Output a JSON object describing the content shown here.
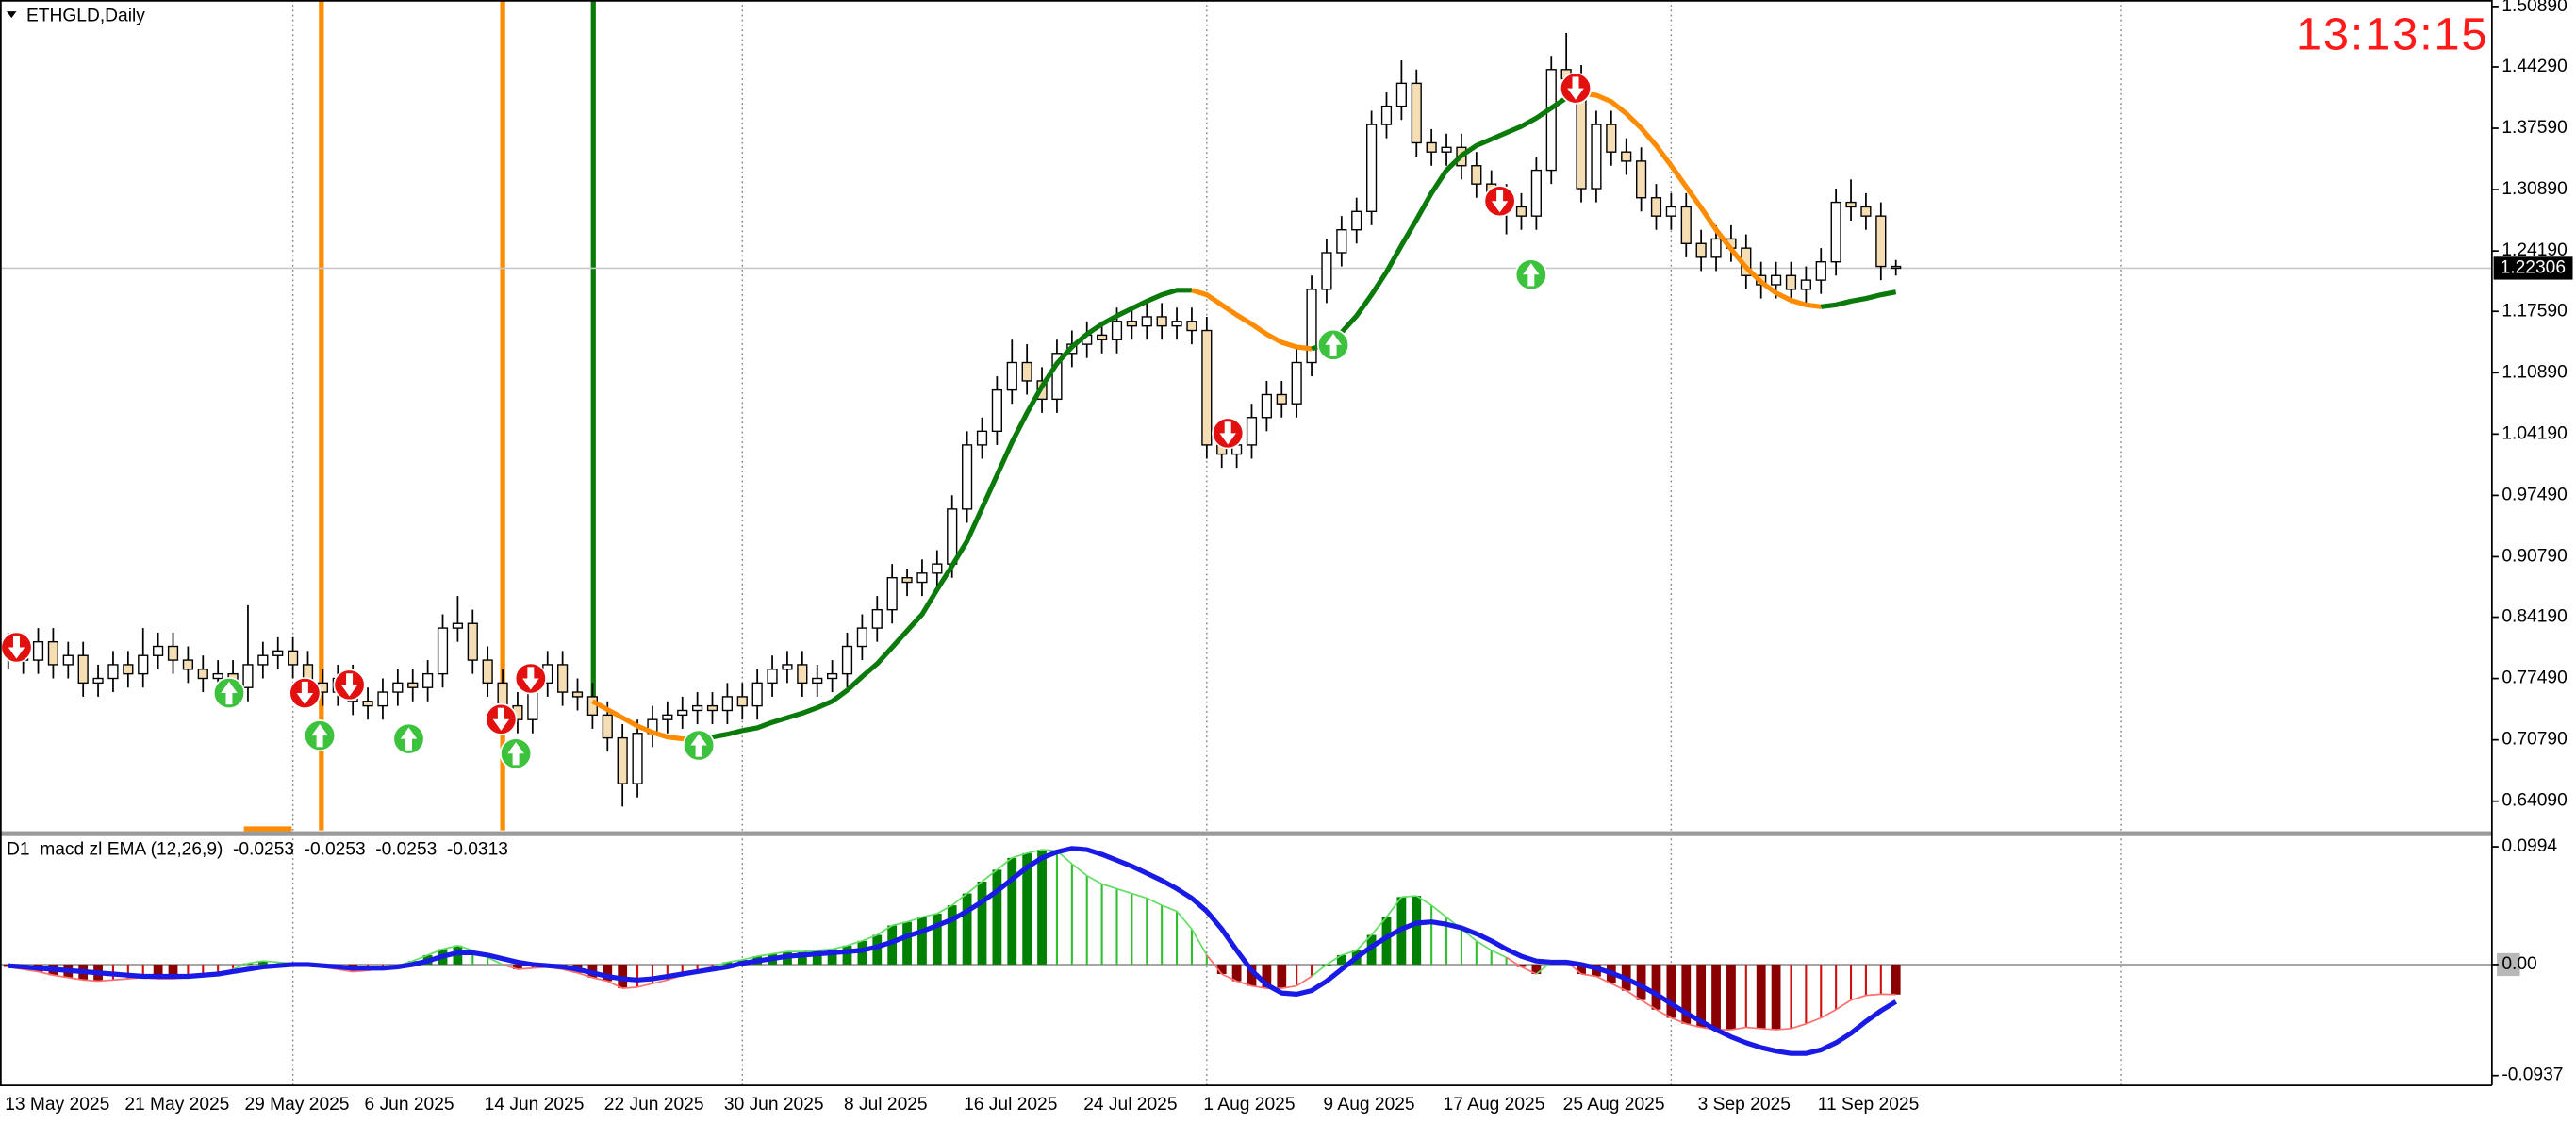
{
  "chart_data": [
    {
      "type": "candlestick",
      "title": "ETHGLD,Daily",
      "clock": "13:13:15",
      "categories": [
        "13 May 2025",
        null,
        null,
        null,
        null,
        null,
        null,
        null,
        "21 May 2025",
        null,
        null,
        null,
        null,
        null,
        null,
        null,
        "29 May 2025",
        null,
        null,
        null,
        null,
        null,
        null,
        null,
        "6 Jun 2025",
        null,
        null,
        null,
        null,
        null,
        null,
        null,
        "14 Jun 2025",
        null,
        null,
        null,
        null,
        null,
        null,
        null,
        "22 Jun 2025",
        null,
        null,
        null,
        null,
        null,
        null,
        null,
        "30 Jun 2025",
        null,
        null,
        null,
        null,
        null,
        null,
        null,
        "8 Jul 2025",
        null,
        null,
        null,
        null,
        null,
        null,
        null,
        "16 Jul 2025",
        null,
        null,
        null,
        null,
        null,
        null,
        null,
        "24 Jul 2025",
        null,
        null,
        null,
        null,
        null,
        null,
        null,
        "1 Aug 2025",
        null,
        null,
        null,
        null,
        null,
        null,
        null,
        "9 Aug 2025",
        null,
        null,
        null,
        null,
        null,
        null,
        null,
        "17 Aug 2025",
        null,
        null,
        null,
        null,
        null,
        null,
        null,
        "25 Aug 2025",
        null,
        null,
        null,
        null,
        null,
        null,
        null,
        null,
        "3 Sep 2025",
        null,
        null,
        null,
        null,
        null,
        null,
        null,
        "11 Sep 2025",
        null,
        null,
        null,
        null,
        null
      ],
      "open": [
        0.8,
        0.81,
        0.795,
        0.815,
        0.79,
        0.8,
        0.77,
        0.775,
        0.79,
        0.78,
        0.8,
        0.81,
        0.795,
        0.785,
        0.775,
        0.78,
        0.765,
        0.79,
        0.8,
        0.805,
        0.79,
        0.77,
        0.76,
        0.775,
        0.75,
        0.745,
        0.76,
        0.77,
        0.765,
        0.78,
        0.83,
        0.835,
        0.795,
        0.77,
        0.745,
        0.73,
        0.77,
        0.79,
        0.76,
        0.755,
        0.735,
        0.71,
        0.66,
        0.715,
        0.73,
        0.735,
        0.74,
        0.745,
        0.74,
        0.755,
        0.745,
        0.77,
        0.785,
        0.79,
        0.77,
        0.775,
        0.78,
        0.81,
        0.83,
        0.85,
        0.885,
        0.88,
        0.89,
        0.9,
        0.96,
        1.03,
        1.045,
        1.09,
        1.12,
        1.1,
        1.08,
        1.13,
        1.14,
        1.15,
        1.145,
        1.165,
        1.16,
        1.17,
        1.16,
        1.165,
        1.155,
        1.03,
        1.02,
        1.03,
        1.06,
        1.085,
        1.075,
        1.12,
        1.2,
        1.24,
        1.265,
        1.285,
        1.38,
        1.4,
        1.425,
        1.36,
        1.35,
        1.355,
        1.335,
        1.315,
        1.3,
        1.29,
        1.28,
        1.33,
        1.44,
        1.43,
        1.31,
        1.38,
        1.35,
        1.34,
        1.3,
        1.28,
        1.29,
        1.25,
        1.235,
        1.255,
        1.245,
        1.215,
        1.205,
        1.215,
        1.2,
        1.21,
        1.23,
        1.295,
        1.29,
        1.28,
        1.225
      ],
      "high": [
        0.825,
        0.825,
        0.83,
        0.83,
        0.815,
        0.815,
        0.79,
        0.805,
        0.805,
        0.83,
        0.825,
        0.825,
        0.81,
        0.8,
        0.795,
        0.795,
        0.855,
        0.815,
        0.82,
        0.82,
        0.805,
        0.785,
        0.79,
        0.79,
        0.765,
        0.775,
        0.785,
        0.785,
        0.795,
        0.845,
        0.865,
        0.85,
        0.81,
        0.785,
        0.76,
        0.785,
        0.805,
        0.805,
        0.775,
        0.77,
        0.75,
        0.725,
        0.73,
        0.745,
        0.75,
        0.755,
        0.76,
        0.76,
        0.77,
        0.77,
        0.785,
        0.8,
        0.805,
        0.805,
        0.79,
        0.795,
        0.825,
        0.845,
        0.865,
        0.9,
        0.895,
        0.905,
        0.915,
        0.975,
        1.045,
        1.06,
        1.105,
        1.145,
        1.14,
        1.115,
        1.145,
        1.155,
        1.165,
        1.165,
        1.18,
        1.18,
        1.185,
        1.185,
        1.18,
        1.18,
        1.17,
        1.045,
        1.045,
        1.075,
        1.1,
        1.1,
        1.135,
        1.215,
        1.255,
        1.28,
        1.3,
        1.395,
        1.415,
        1.45,
        1.44,
        1.375,
        1.37,
        1.37,
        1.35,
        1.33,
        1.315,
        1.305,
        1.345,
        1.455,
        1.48,
        1.445,
        1.395,
        1.395,
        1.365,
        1.355,
        1.315,
        1.305,
        1.305,
        1.265,
        1.27,
        1.27,
        1.26,
        1.23,
        1.23,
        1.23,
        1.225,
        1.245,
        1.31,
        1.32,
        1.305,
        1.295,
        1.232
      ],
      "low": [
        0.785,
        0.78,
        0.78,
        0.775,
        0.775,
        0.755,
        0.755,
        0.76,
        0.765,
        0.765,
        0.785,
        0.78,
        0.77,
        0.76,
        0.76,
        0.75,
        0.75,
        0.775,
        0.785,
        0.775,
        0.755,
        0.745,
        0.745,
        0.735,
        0.73,
        0.73,
        0.745,
        0.75,
        0.75,
        0.765,
        0.815,
        0.78,
        0.755,
        0.73,
        0.715,
        0.715,
        0.755,
        0.745,
        0.74,
        0.72,
        0.695,
        0.635,
        0.645,
        0.7,
        0.715,
        0.72,
        0.725,
        0.725,
        0.725,
        0.73,
        0.73,
        0.755,
        0.77,
        0.755,
        0.755,
        0.76,
        0.765,
        0.795,
        0.815,
        0.835,
        0.865,
        0.865,
        0.875,
        0.885,
        0.945,
        1.015,
        1.03,
        1.075,
        1.085,
        1.065,
        1.065,
        1.115,
        1.125,
        1.13,
        1.13,
        1.145,
        1.145,
        1.145,
        1.145,
        1.14,
        1.015,
        1.005,
        1.005,
        1.015,
        1.045,
        1.06,
        1.06,
        1.105,
        1.185,
        1.225,
        1.25,
        1.27,
        1.365,
        1.385,
        1.345,
        1.335,
        1.335,
        1.32,
        1.3,
        1.285,
        1.26,
        1.265,
        1.265,
        1.315,
        1.415,
        1.295,
        1.295,
        1.335,
        1.325,
        1.285,
        1.265,
        1.265,
        1.235,
        1.22,
        1.22,
        1.23,
        1.2,
        1.19,
        1.19,
        1.185,
        1.185,
        1.195,
        1.215,
        1.275,
        1.265,
        1.21,
        1.215
      ],
      "close": [
        0.81,
        0.795,
        0.815,
        0.79,
        0.8,
        0.77,
        0.775,
        0.79,
        0.78,
        0.8,
        0.81,
        0.795,
        0.785,
        0.775,
        0.78,
        0.765,
        0.79,
        0.8,
        0.805,
        0.79,
        0.77,
        0.76,
        0.775,
        0.75,
        0.745,
        0.76,
        0.77,
        0.765,
        0.78,
        0.83,
        0.835,
        0.795,
        0.77,
        0.745,
        0.73,
        0.77,
        0.79,
        0.76,
        0.755,
        0.735,
        0.71,
        0.66,
        0.715,
        0.73,
        0.735,
        0.74,
        0.745,
        0.74,
        0.755,
        0.745,
        0.77,
        0.785,
        0.79,
        0.77,
        0.775,
        0.78,
        0.81,
        0.83,
        0.85,
        0.885,
        0.88,
        0.89,
        0.9,
        0.96,
        1.03,
        1.045,
        1.09,
        1.12,
        1.1,
        1.08,
        1.13,
        1.14,
        1.15,
        1.145,
        1.165,
        1.16,
        1.17,
        1.16,
        1.165,
        1.155,
        1.03,
        1.02,
        1.03,
        1.06,
        1.085,
        1.075,
        1.12,
        1.2,
        1.24,
        1.265,
        1.285,
        1.38,
        1.4,
        1.425,
        1.36,
        1.35,
        1.355,
        1.335,
        1.315,
        1.3,
        1.29,
        1.28,
        1.33,
        1.44,
        1.43,
        1.31,
        1.38,
        1.35,
        1.34,
        1.3,
        1.28,
        1.29,
        1.25,
        1.235,
        1.255,
        1.245,
        1.215,
        1.205,
        1.215,
        1.2,
        1.21,
        1.23,
        1.295,
        1.29,
        1.28,
        1.225,
        1.22306
      ],
      "bull_color": "#ffffff",
      "bear_color": "#f5deb3",
      "current_price": 1.22306,
      "line": {
        "up_color": "#0a7a0a",
        "down_color": "#ff8c00",
        "values": [
          null,
          null,
          null,
          null,
          null,
          null,
          null,
          null,
          null,
          null,
          null,
          null,
          null,
          null,
          null,
          null,
          null,
          null,
          null,
          null,
          null,
          null,
          null,
          null,
          null,
          null,
          null,
          null,
          null,
          null,
          null,
          null,
          null,
          null,
          null,
          null,
          null,
          null,
          null,
          0.75,
          0.741,
          0.732,
          0.723,
          0.716,
          0.711,
          0.709,
          0.709,
          0.711,
          0.714,
          0.718,
          0.721,
          0.727,
          0.732,
          0.737,
          0.743,
          0.75,
          0.762,
          0.777,
          0.791,
          0.809,
          0.827,
          0.845,
          0.872,
          0.898,
          0.925,
          0.961,
          0.997,
          1.033,
          1.065,
          1.094,
          1.119,
          1.137,
          1.151,
          1.162,
          1.171,
          1.179,
          1.187,
          1.194,
          1.199,
          1.199,
          1.194,
          1.183,
          1.172,
          1.162,
          1.151,
          1.142,
          1.137,
          1.135,
          1.14,
          1.153,
          1.171,
          1.194,
          1.219,
          1.248,
          1.276,
          1.305,
          1.33,
          1.346,
          1.357,
          1.364,
          1.371,
          1.378,
          1.387,
          1.398,
          1.409,
          1.414,
          1.412,
          1.405,
          1.392,
          1.376,
          1.357,
          1.335,
          1.312,
          1.289,
          1.265,
          1.244,
          1.224,
          1.208,
          1.196,
          1.188,
          1.183,
          1.181,
          1.183,
          1.187,
          1.19,
          1.194,
          1.197
        ]
      },
      "ylim": [
        0.609,
        1.516
      ],
      "yticks": [
        {
          "value": 1.5089,
          "label": "1.50890"
        },
        {
          "value": 1.4429,
          "label": "1.44290"
        },
        {
          "value": 1.3759,
          "label": "1.37590"
        },
        {
          "value": 1.3089,
          "label": "1.30890"
        },
        {
          "value": 1.2419,
          "label": "1.24190"
        },
        {
          "value": 1.1759,
          "label": "1.17590"
        },
        {
          "value": 1.1089,
          "label": "1.10890"
        },
        {
          "value": 1.0419,
          "label": "1.04190"
        },
        {
          "value": 0.9749,
          "label": "0.97490"
        },
        {
          "value": 0.9079,
          "label": "0.90790"
        },
        {
          "value": 0.8419,
          "label": "0.84190"
        },
        {
          "value": 0.7749,
          "label": "0.77490"
        },
        {
          "value": 0.7079,
          "label": "0.70790"
        },
        {
          "value": 0.6409,
          "label": "0.64090"
        }
      ]
    },
    {
      "type": "macd",
      "label": "D1  macd zl EMA (12,26,9)",
      "readout": [
        -0.0253,
        -0.0253,
        -0.0253,
        -0.0313
      ],
      "histogram": {
        "positive_color": "#008000",
        "positive_fade": "#2fbf2f",
        "negative_color": "#8b0000",
        "negative_fade": "#d01010",
        "line_positive_color": "#66dd66",
        "line_negative_color": "#ff7070",
        "values": [
          -0.002,
          -0.004,
          -0.006,
          -0.009,
          -0.011,
          -0.013,
          -0.014,
          -0.013,
          -0.012,
          -0.011,
          -0.012,
          -0.012,
          -0.011,
          -0.01,
          -0.008,
          -0.004,
          0.001,
          0.003,
          0.002,
          0.001,
          -0.001,
          -0.002,
          -0.004,
          -0.006,
          -0.005,
          -0.003,
          -0.001,
          0.003,
          0.008,
          0.013,
          0.016,
          0.012,
          0.006,
          0.0,
          -0.004,
          -0.003,
          -0.002,
          -0.004,
          -0.007,
          -0.011,
          -0.014,
          -0.02,
          -0.019,
          -0.016,
          -0.013,
          -0.009,
          -0.005,
          -0.002,
          0.002,
          0.004,
          0.007,
          0.009,
          0.011,
          0.011,
          0.012,
          0.013,
          0.016,
          0.02,
          0.025,
          0.033,
          0.036,
          0.04,
          0.043,
          0.05,
          0.06,
          0.07,
          0.08,
          0.09,
          0.094,
          0.097,
          0.096,
          0.085,
          0.075,
          0.068,
          0.064,
          0.06,
          0.056,
          0.05,
          0.045,
          0.03,
          0.008,
          -0.008,
          -0.014,
          -0.018,
          -0.02,
          -0.02,
          -0.018,
          -0.01,
          0.0,
          0.008,
          0.012,
          0.025,
          0.04,
          0.057,
          0.058,
          0.05,
          0.04,
          0.03,
          0.02,
          0.012,
          0.006,
          -0.002,
          -0.008,
          0.002,
          0.003,
          -0.008,
          -0.01,
          -0.016,
          -0.022,
          -0.03,
          -0.038,
          -0.045,
          -0.05,
          -0.053,
          -0.055,
          -0.055,
          -0.053,
          -0.054,
          -0.055,
          -0.054,
          -0.05,
          -0.045,
          -0.038,
          -0.03,
          -0.026,
          -0.025,
          -0.0253
        ]
      },
      "signal": {
        "color": "#1a1ae6",
        "values": [
          -0.001,
          -0.002,
          -0.003,
          -0.004,
          -0.005,
          -0.006,
          -0.007,
          -0.008,
          -0.009,
          -0.01,
          -0.01,
          -0.01,
          -0.01,
          -0.009,
          -0.008,
          -0.006,
          -0.004,
          -0.002,
          -0.001,
          0.0,
          0.0,
          -0.001,
          -0.002,
          -0.003,
          -0.003,
          -0.003,
          -0.002,
          0.0,
          0.003,
          0.007,
          0.01,
          0.01,
          0.008,
          0.005,
          0.002,
          0.0,
          -0.001,
          -0.002,
          -0.004,
          -0.007,
          -0.01,
          -0.012,
          -0.013,
          -0.012,
          -0.01,
          -0.008,
          -0.006,
          -0.004,
          -0.002,
          0.001,
          0.003,
          0.005,
          0.007,
          0.008,
          0.009,
          0.01,
          0.011,
          0.012,
          0.015,
          0.019,
          0.024,
          0.028,
          0.033,
          0.038,
          0.045,
          0.053,
          0.062,
          0.072,
          0.082,
          0.09,
          0.095,
          0.098,
          0.097,
          0.093,
          0.088,
          0.083,
          0.077,
          0.071,
          0.064,
          0.056,
          0.045,
          0.03,
          0.012,
          -0.005,
          -0.017,
          -0.024,
          -0.025,
          -0.022,
          -0.014,
          -0.004,
          0.006,
          0.015,
          0.023,
          0.03,
          0.035,
          0.036,
          0.034,
          0.031,
          0.026,
          0.02,
          0.013,
          0.007,
          0.003,
          0.002,
          0.002,
          0.0,
          -0.003,
          -0.007,
          -0.012,
          -0.018,
          -0.025,
          -0.033,
          -0.041,
          -0.048,
          -0.055,
          -0.061,
          -0.066,
          -0.07,
          -0.073,
          -0.075,
          -0.075,
          -0.072,
          -0.066,
          -0.058,
          -0.048,
          -0.039,
          -0.0313
        ]
      },
      "ylim": [
        -0.102,
        0.1077
      ],
      "yticks": [
        0.0994,
        {
          "value": 0,
          "label": "0.00"
        },
        -0.0937
      ]
    }
  ]
}
